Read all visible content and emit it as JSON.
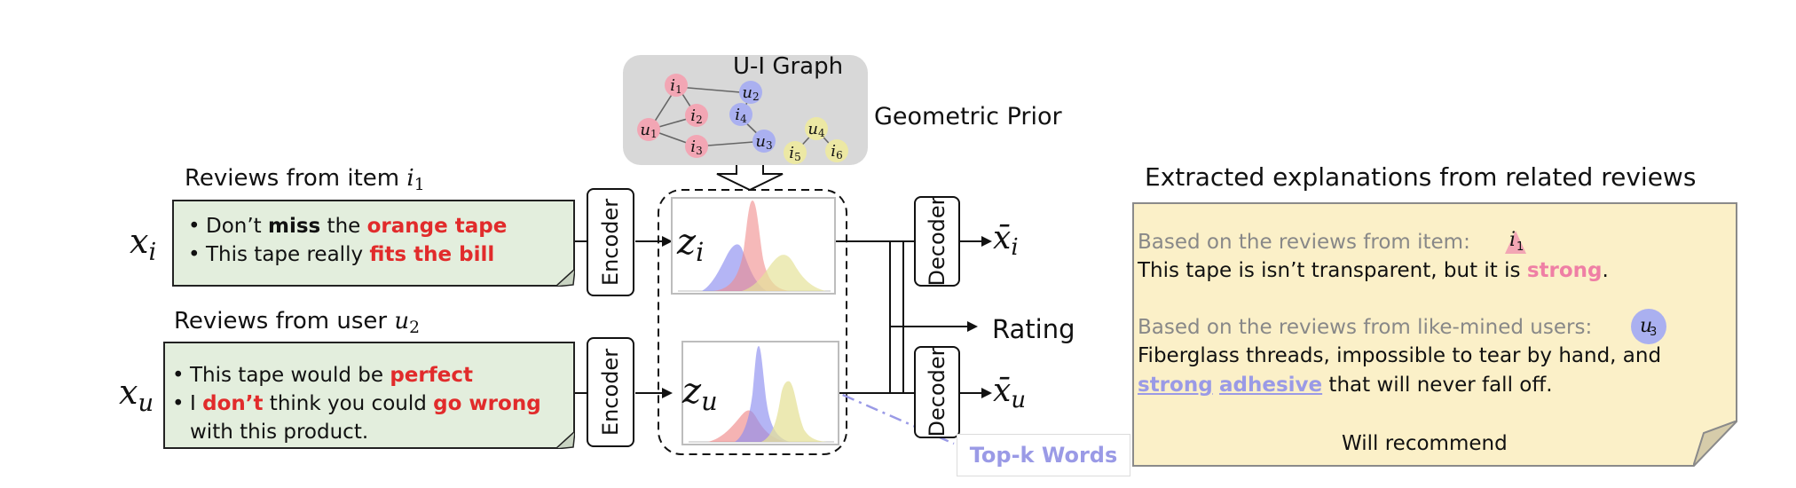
{
  "graph": {
    "title": "U-I Graph",
    "caption": "Geometric Prior",
    "nodes": [
      {
        "letter": "i",
        "sub": "1",
        "color": "#f2a6b4"
      },
      {
        "letter": "u",
        "sub": "2",
        "color": "#aab0f0"
      },
      {
        "letter": "u",
        "sub": "1",
        "color": "#f2a6b4"
      },
      {
        "letter": "i",
        "sub": "2",
        "color": "#f2a6b4"
      },
      {
        "letter": "i",
        "sub": "4",
        "color": "#aab0f0"
      },
      {
        "letter": "u",
        "sub": "3",
        "color": "#aab0f0"
      },
      {
        "letter": "i",
        "sub": "3",
        "color": "#f2a6b4"
      },
      {
        "letter": "u",
        "sub": "4",
        "color": "#ece8a4"
      },
      {
        "letter": "i",
        "sub": "5",
        "color": "#ece8a4"
      },
      {
        "letter": "i",
        "sub": "6",
        "color": "#ece8a4"
      }
    ]
  },
  "item_reviews": {
    "title_prefix": "Reviews from item",
    "title_var": "i",
    "title_sub": "1",
    "input_var": "x",
    "input_sub": "i",
    "lines": [
      [
        "Don’t ",
        "miss",
        " the ",
        "orange tape"
      ],
      [
        "This tape really ",
        "fits the bill"
      ]
    ]
  },
  "user_reviews": {
    "title_prefix": "Reviews from user",
    "title_var": "u",
    "title_sub": "2",
    "input_var": "x",
    "input_sub": "u",
    "lines": [
      [
        "This tape would be ",
        "perfect"
      ],
      [
        "I ",
        "don’t",
        " think you could ",
        "go wrong"
      ],
      [
        "with this product."
      ]
    ]
  },
  "encoder_label": "Encoder",
  "decoder_label": "Decoder",
  "latent": {
    "item_var": "z",
    "item_sub": "i",
    "user_var": "z",
    "user_sub": "u"
  },
  "outputs": {
    "item_var": "x̄",
    "item_sub": "i",
    "user_var": "x̄",
    "user_sub": "u",
    "rating": "Rating"
  },
  "topk_label": "Top-k Words",
  "explanation": {
    "title": "Extracted explanations from related reviews",
    "item_intro": "Based on the reviews from item:",
    "item_node": {
      "letter": "i",
      "sub": "1"
    },
    "item_text_a": "This tape is isn’t transparent, but it is ",
    "item_text_hl": "strong",
    "item_text_b": ".",
    "user_intro": "Based on the reviews from like-mined users:",
    "user_node": {
      "letter": "u",
      "sub": "3"
    },
    "user_text_1": "Fiberglass threads, impossible to tear by hand, and",
    "user_hl_1": "strong",
    "user_hl_2": "adhesive",
    "user_text_2": " that will never fall off.",
    "conclusion": "Will recommend"
  },
  "colors": {
    "red": "#e12b2b",
    "pink": "#ef7fa5",
    "purple": "#9a9ae6",
    "review_bg": "#e3eedd",
    "explain_bg": "#fbf0c8",
    "graph_bg": "#d8d8d8",
    "dist_red": "#f08a8a",
    "dist_blue": "#8c8ef0",
    "dist_yellow": "#e6e29a"
  }
}
